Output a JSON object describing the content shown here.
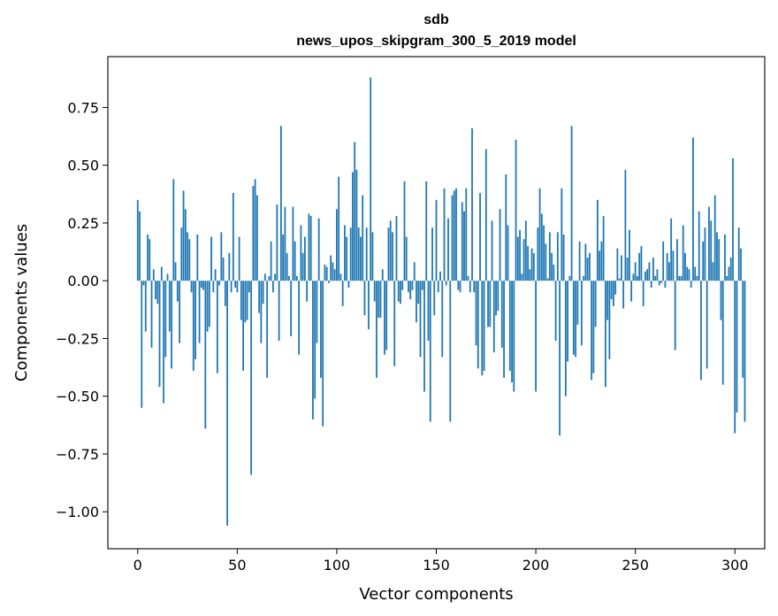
{
  "chart_data": {
    "type": "bar",
    "title": "sdb",
    "subtitle": "news_upos_skipgram_300_5_2019 model",
    "xlabel": "Vector components",
    "ylabel": "Components values",
    "xlim": [
      -15,
      315
    ],
    "ylim": [
      -1.16,
      0.97
    ],
    "xticks": [
      0,
      50,
      100,
      150,
      200,
      250,
      300
    ],
    "yticks": [
      0.75,
      0.5,
      0.25,
      0.0,
      -0.25,
      -0.5,
      -0.75,
      -1.0
    ],
    "ytick_labels": [
      "0.75",
      "0.50",
      "0.25",
      "0.00",
      "−0.25",
      "−0.50",
      "−0.75",
      "−1.00"
    ],
    "grid": false,
    "bar_color": "#1f77b4",
    "series": [
      {
        "values": [
          0.35,
          0.3,
          -0.55,
          -0.02,
          -0.22,
          0.2,
          0.18,
          -0.29,
          0.05,
          -0.08,
          -0.1,
          -0.46,
          0.06,
          -0.53,
          -0.33,
          0.03,
          -0.22,
          -0.38,
          0.44,
          0.08,
          -0.09,
          -0.27,
          0.23,
          0.39,
          0.31,
          0.21,
          0.18,
          -0.05,
          -0.39,
          -0.34,
          0.2,
          -0.27,
          -0.03,
          -0.04,
          -0.64,
          -0.22,
          -0.2,
          0.19,
          -0.05,
          0.05,
          -0.4,
          -0.02,
          0.21,
          0.1,
          -0.11,
          -1.06,
          0.12,
          -0.05,
          0.38,
          -0.03,
          -0.05,
          0.19,
          -0.17,
          -0.39,
          -0.18,
          -0.17,
          -0.05,
          -0.84,
          0.41,
          0.44,
          0.37,
          -0.14,
          -0.27,
          -0.1,
          0.03,
          -0.42,
          0.02,
          0.17,
          -0.05,
          0.03,
          0.33,
          -0.26,
          0.67,
          0.2,
          0.32,
          0.12,
          0.02,
          -0.24,
          0.32,
          0.17,
          0.02,
          -0.32,
          0.24,
          0.12,
          0.19,
          -0.09,
          0.29,
          0.28,
          -0.6,
          -0.51,
          -0.27,
          0.27,
          -0.42,
          -0.63,
          0.07,
          0.06,
          -0.01,
          0.11,
          0.08,
          0.05,
          0.31,
          0.45,
          0.03,
          -0.11,
          0.24,
          0.19,
          -0.03,
          0.23,
          0.47,
          0.6,
          0.48,
          0.23,
          0.19,
          0.37,
          -0.15,
          0.23,
          -0.21,
          0.88,
          0.21,
          -0.09,
          -0.42,
          -0.16,
          -0.16,
          0.05,
          -0.32,
          -0.3,
          0.23,
          0.26,
          0.21,
          -0.37,
          0.28,
          -0.09,
          -0.1,
          -0.04,
          0.43,
          0.19,
          -0.05,
          -0.08,
          -0.04,
          0.08,
          -0.18,
          -0.1,
          -0.33,
          -0.04,
          -0.48,
          0.43,
          -0.26,
          -0.61,
          0.23,
          -0.15,
          0.35,
          -0.05,
          0.04,
          -0.33,
          0.4,
          -0.02,
          0.27,
          -0.61,
          0.37,
          0.39,
          0.4,
          -0.04,
          -0.05,
          0.34,
          0.3,
          0.4,
          0.02,
          -0.05,
          0.66,
          -0.05,
          -0.28,
          -0.38,
          0.38,
          -0.41,
          -0.39,
          0.57,
          -0.2,
          -0.2,
          0.26,
          -0.31,
          -0.15,
          -0.13,
          0.31,
          -0.29,
          -0.42,
          0.46,
          0.24,
          -0.39,
          -0.44,
          -0.48,
          0.61,
          0.19,
          0.22,
          0.03,
          0.18,
          0.26,
          0.15,
          0.05,
          0.14,
          0.12,
          -0.48,
          0.23,
          0.4,
          0.29,
          0.24,
          0.16,
          0.01,
          0.21,
          0.12,
          0.07,
          -0.26,
          0.21,
          -0.67,
          0.4,
          0.2,
          -0.5,
          -0.35,
          0.02,
          0.67,
          -0.32,
          -0.33,
          -0.19,
          0.17,
          -0.28,
          0.02,
          0.16,
          0.1,
          0.12,
          -0.43,
          -0.4,
          -0.2,
          0.35,
          0.13,
          0.17,
          0.28,
          -0.46,
          -0.17,
          -0.34,
          -0.08,
          -0.11,
          -0.06,
          0.14,
          0.01,
          0.11,
          -0.12,
          0.48,
          0.1,
          0.22,
          -0.09,
          0.03,
          0.08,
          0.02,
          0.12,
          0.15,
          -0.11,
          0.04,
          0.05,
          0.08,
          -0.03,
          0.1,
          0.02,
          0.05,
          -0.02,
          -0.01,
          0.17,
          -0.03,
          0.12,
          0.08,
          0.27,
          0.13,
          -0.3,
          0.18,
          0.02,
          0.02,
          0.24,
          0.12,
          0.06,
          0.05,
          -0.03,
          0.62,
          0.06,
          0.02,
          0.3,
          -0.43,
          0.17,
          0.23,
          -0.38,
          0.32,
          0.26,
          0.08,
          0.37,
          0.21,
          0.18,
          -0.17,
          -0.45,
          0.2,
          0.02,
          0.06,
          0.1,
          0.53,
          -0.66,
          -0.57,
          0.23,
          0.14,
          -0.42,
          -0.61
        ]
      }
    ]
  }
}
